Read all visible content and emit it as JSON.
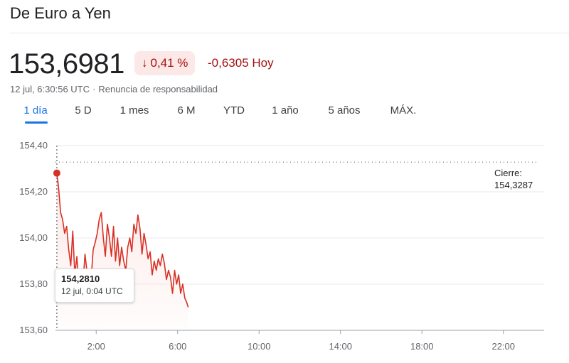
{
  "title": "De Euro a Yen",
  "price": "153,6981",
  "change": {
    "arrow": "↓",
    "percent": "0,41 %",
    "absolute": "-0,6305",
    "period": "Hoy",
    "color": "#a50e0e",
    "badge_color": "#fce8e6"
  },
  "meta": {
    "timestamp": "12 jul, 6:30:56 UTC",
    "separator": "·",
    "disclaimer": "Renuncia de responsabilidad"
  },
  "tabs": [
    {
      "label": "1 día",
      "active": true
    },
    {
      "label": "5 D",
      "active": false
    },
    {
      "label": "1 mes",
      "active": false
    },
    {
      "label": "6 M",
      "active": false
    },
    {
      "label": "YTD",
      "active": false
    },
    {
      "label": "1 año",
      "active": false
    },
    {
      "label": "5 años",
      "active": false
    },
    {
      "label": "MÁX.",
      "active": false
    }
  ],
  "tooltip": {
    "value": "154,2810",
    "time": "12 jul, 0:04 UTC"
  },
  "close": {
    "label": "Cierre:",
    "value": "154,3287"
  },
  "chart_data": {
    "type": "line",
    "title": "",
    "xlabel": "",
    "ylabel": "",
    "line_color": "#d93025",
    "fill_color": "#fce8e6",
    "x_unit": "hours UTC",
    "xlim": [
      0,
      24
    ],
    "ylim": [
      153.6,
      154.4
    ],
    "x_ticks": [
      {
        "value": 2,
        "label": "2:00"
      },
      {
        "value": 6,
        "label": "6:00"
      },
      {
        "value": 10,
        "label": "10:00"
      },
      {
        "value": 14,
        "label": "14:00"
      },
      {
        "value": 18,
        "label": "18:00"
      },
      {
        "value": 22,
        "label": "22:00"
      }
    ],
    "y_ticks": [
      {
        "value": 154.4,
        "label": "154,40"
      },
      {
        "value": 154.2,
        "label": "154,20"
      },
      {
        "value": 154.0,
        "label": "154,00"
      },
      {
        "value": 153.8,
        "label": "153,80"
      },
      {
        "value": 153.6,
        "label": "153,60"
      }
    ],
    "previous_close": 154.3287,
    "grid": true,
    "highlight_point": {
      "x": 0.067,
      "y": 154.281
    },
    "series": [
      {
        "x": [
          0.067,
          0.15,
          0.25,
          0.35,
          0.45,
          0.55,
          0.65,
          0.75,
          0.85,
          0.95,
          1.05,
          1.15,
          1.25,
          1.35,
          1.45,
          1.55,
          1.65,
          1.75,
          1.85,
          1.95,
          2.05,
          2.15,
          2.25,
          2.35,
          2.45,
          2.55,
          2.65,
          2.75,
          2.85,
          2.95,
          3.05,
          3.15,
          3.25,
          3.35,
          3.45,
          3.55,
          3.65,
          3.75,
          3.85,
          3.95,
          4.05,
          4.15,
          4.25,
          4.35,
          4.45,
          4.55,
          4.65,
          4.75,
          4.85,
          4.95,
          5.05,
          5.15,
          5.25,
          5.35,
          5.45,
          5.55,
          5.65,
          5.75,
          5.85,
          5.95,
          6.05,
          6.15,
          6.25,
          6.35,
          6.45,
          6.52
        ],
        "y": [
          154.281,
          154.22,
          154.11,
          154.08,
          154.02,
          154.05,
          153.95,
          153.88,
          154.03,
          153.84,
          153.92,
          153.78,
          153.86,
          153.8,
          153.93,
          153.85,
          153.84,
          153.82,
          153.95,
          153.98,
          154.02,
          154.08,
          154.11,
          154.0,
          153.92,
          154.06,
          154.0,
          153.92,
          154.05,
          153.9,
          154.0,
          153.88,
          153.96,
          153.9,
          153.86,
          153.96,
          154.0,
          153.94,
          154.06,
          154.02,
          154.1,
          154.04,
          153.93,
          154.02,
          153.97,
          153.91,
          153.94,
          153.84,
          153.9,
          153.86,
          153.91,
          153.88,
          153.93,
          153.89,
          153.82,
          153.86,
          153.83,
          153.76,
          153.86,
          153.8,
          153.84,
          153.76,
          153.8,
          153.74,
          153.72,
          153.7
        ]
      }
    ]
  }
}
